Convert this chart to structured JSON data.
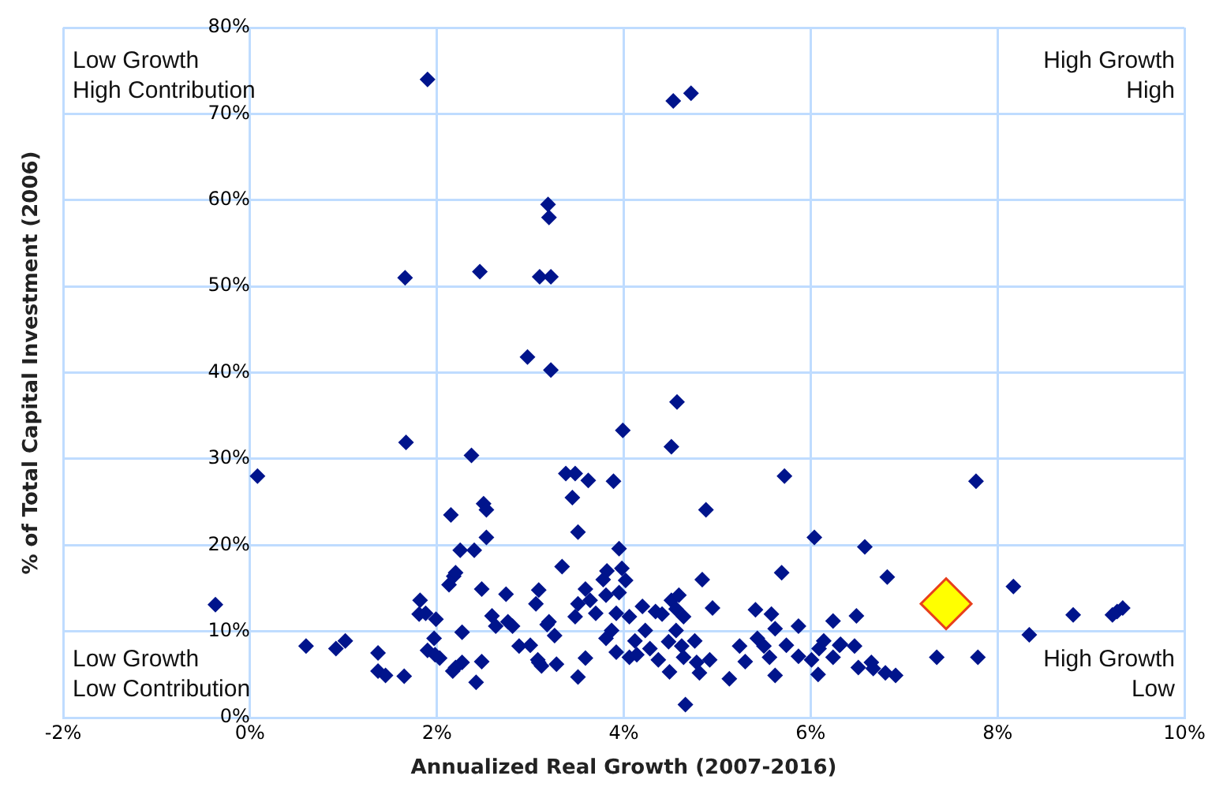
{
  "chart_data": {
    "type": "scatter",
    "xlabel": "Annualized Real Growth (2007-2016)",
    "ylabel": "% of Total Capital Investment (2006)",
    "xlim": [
      -2,
      10
    ],
    "xticks": [
      {
        "value": -2,
        "label": "-2%"
      },
      {
        "value": 0,
        "label": "0%"
      },
      {
        "value": 2,
        "label": "2%"
      },
      {
        "value": 4,
        "label": "4%"
      },
      {
        "value": 6,
        "label": "6%"
      },
      {
        "value": 8,
        "label": "8%"
      },
      {
        "value": 10,
        "label": "10%"
      }
    ],
    "ylim": [
      0,
      80
    ],
    "yticks": [
      {
        "value": 0,
        "label": "0%"
      },
      {
        "value": 10,
        "label": "10%"
      },
      {
        "value": 20,
        "label": "20%"
      },
      {
        "value": 30,
        "label": "30%"
      },
      {
        "value": 40,
        "label": "40%"
      },
      {
        "value": 50,
        "label": "50%"
      },
      {
        "value": 60,
        "label": "60%"
      },
      {
        "value": 70,
        "label": "70%"
      },
      {
        "value": 80,
        "label": "80%"
      }
    ],
    "grid": true,
    "legend": false,
    "marker": "diamond",
    "annotations": [
      "Low Growth\nHigh Contribution",
      "High Growth\nHigh",
      "Low Growth\nLow Contribution",
      "High Growth\nLow"
    ],
    "series": [
      {
        "color": "#00148c",
        "x": [
          1.9,
          4.53,
          4.72,
          3.19,
          3.2,
          1.66,
          2.46,
          3.1,
          3.22,
          2.97,
          3.22,
          4.57,
          3.99,
          4.51,
          1.67,
          2.37,
          0.08,
          5.72,
          7.77,
          3.38,
          3.48,
          3.62,
          3.89,
          3.45,
          2.5,
          2.53,
          4.88,
          2.15,
          3.51,
          2.53,
          6.04,
          6.58,
          2.25,
          2.4,
          3.95,
          3.34,
          5.69,
          3.82,
          3.78,
          3.98,
          4.02,
          3.95,
          6.82,
          4.84,
          8.17,
          2.13,
          2.18,
          2.2,
          2.48,
          2.74,
          3.09,
          3.06,
          1.82,
          1.81,
          1.88,
          1.99,
          2.59,
          2.63,
          2.76,
          2.81,
          3.18,
          2.27,
          1.97,
          1.9,
          1.98,
          2.03,
          2.48,
          2.27,
          2.2,
          2.17,
          2.42,
          2.88,
          3.0,
          3.08,
          3.12,
          0.6,
          0.92,
          1.02,
          1.37,
          1.37,
          1.45,
          1.65,
          -0.37,
          3.59,
          3.51,
          3.64,
          3.7,
          3.48,
          3.81,
          4.95,
          3.92,
          4.06,
          4.2,
          4.34,
          4.41,
          4.51,
          4.59,
          4.56,
          4.64,
          3.2,
          3.26,
          3.09,
          3.28,
          3.87,
          3.81,
          3.92,
          3.59,
          3.51,
          4.23,
          4.12,
          4.06,
          4.14,
          4.28,
          4.37,
          4.48,
          4.56,
          4.62,
          4.64,
          4.76,
          4.78,
          4.81,
          4.92,
          4.49,
          4.66,
          5.13,
          5.24,
          5.3,
          5.41,
          5.58,
          5.62,
          5.87,
          6.24,
          5.43,
          5.5,
          5.56,
          5.74,
          5.87,
          5.62,
          6.01,
          6.09,
          6.14,
          6.08,
          6.24,
          6.31,
          8.81,
          9.23,
          9.28,
          9.34,
          8.34,
          6.49,
          6.32,
          6.47,
          6.51,
          6.65,
          6.67,
          6.8,
          6.91,
          7.35,
          7.79
        ],
        "values": [
          74.0,
          71.5,
          72.4,
          59.5,
          58.0,
          51.0,
          51.7,
          51.1,
          51.1,
          41.8,
          40.3,
          36.6,
          33.3,
          31.4,
          31.9,
          30.4,
          28.0,
          28.0,
          27.4,
          28.3,
          28.3,
          27.5,
          27.4,
          25.5,
          24.8,
          24.1,
          24.1,
          23.5,
          21.5,
          20.9,
          20.9,
          19.8,
          19.4,
          19.4,
          19.6,
          17.5,
          16.8,
          17.0,
          16.0,
          17.3,
          15.9,
          14.5,
          16.3,
          16.0,
          15.2,
          15.4,
          16.4,
          16.8,
          14.9,
          14.3,
          14.8,
          13.2,
          13.6,
          12.0,
          12.1,
          11.4,
          11.8,
          10.6,
          11.1,
          10.6,
          10.8,
          9.9,
          9.2,
          7.8,
          7.3,
          6.9,
          6.5,
          6.4,
          5.8,
          5.4,
          4.1,
          8.3,
          8.4,
          6.7,
          6.0,
          8.3,
          8.0,
          8.9,
          7.5,
          5.4,
          4.9,
          4.8,
          13.1,
          14.9,
          13.2,
          13.6,
          12.1,
          11.7,
          14.2,
          12.7,
          12.1,
          11.7,
          12.9,
          12.3,
          12.0,
          13.6,
          14.2,
          12.6,
          11.7,
          11.1,
          9.5,
          6.4,
          6.2,
          10.1,
          9.2,
          7.6,
          6.9,
          4.7,
          10.1,
          8.9,
          7.0,
          7.3,
          8.0,
          6.7,
          8.8,
          10.1,
          8.3,
          7.0,
          8.9,
          6.4,
          5.2,
          6.7,
          5.3,
          1.5,
          4.5,
          8.3,
          6.5,
          12.5,
          12.0,
          10.3,
          10.6,
          11.2,
          9.2,
          8.3,
          7.0,
          8.4,
          7.1,
          4.9,
          6.7,
          8.0,
          8.9,
          5.0,
          7.0,
          8.4,
          11.9,
          11.9,
          12.3,
          12.7,
          9.6,
          11.8,
          8.5,
          8.3,
          5.8,
          6.4,
          5.7,
          5.2,
          4.9,
          7.0,
          7.0
        ]
      },
      {
        "color": "#ffff00",
        "x": [
          7.45
        ],
        "values": [
          13.2
        ]
      }
    ]
  }
}
